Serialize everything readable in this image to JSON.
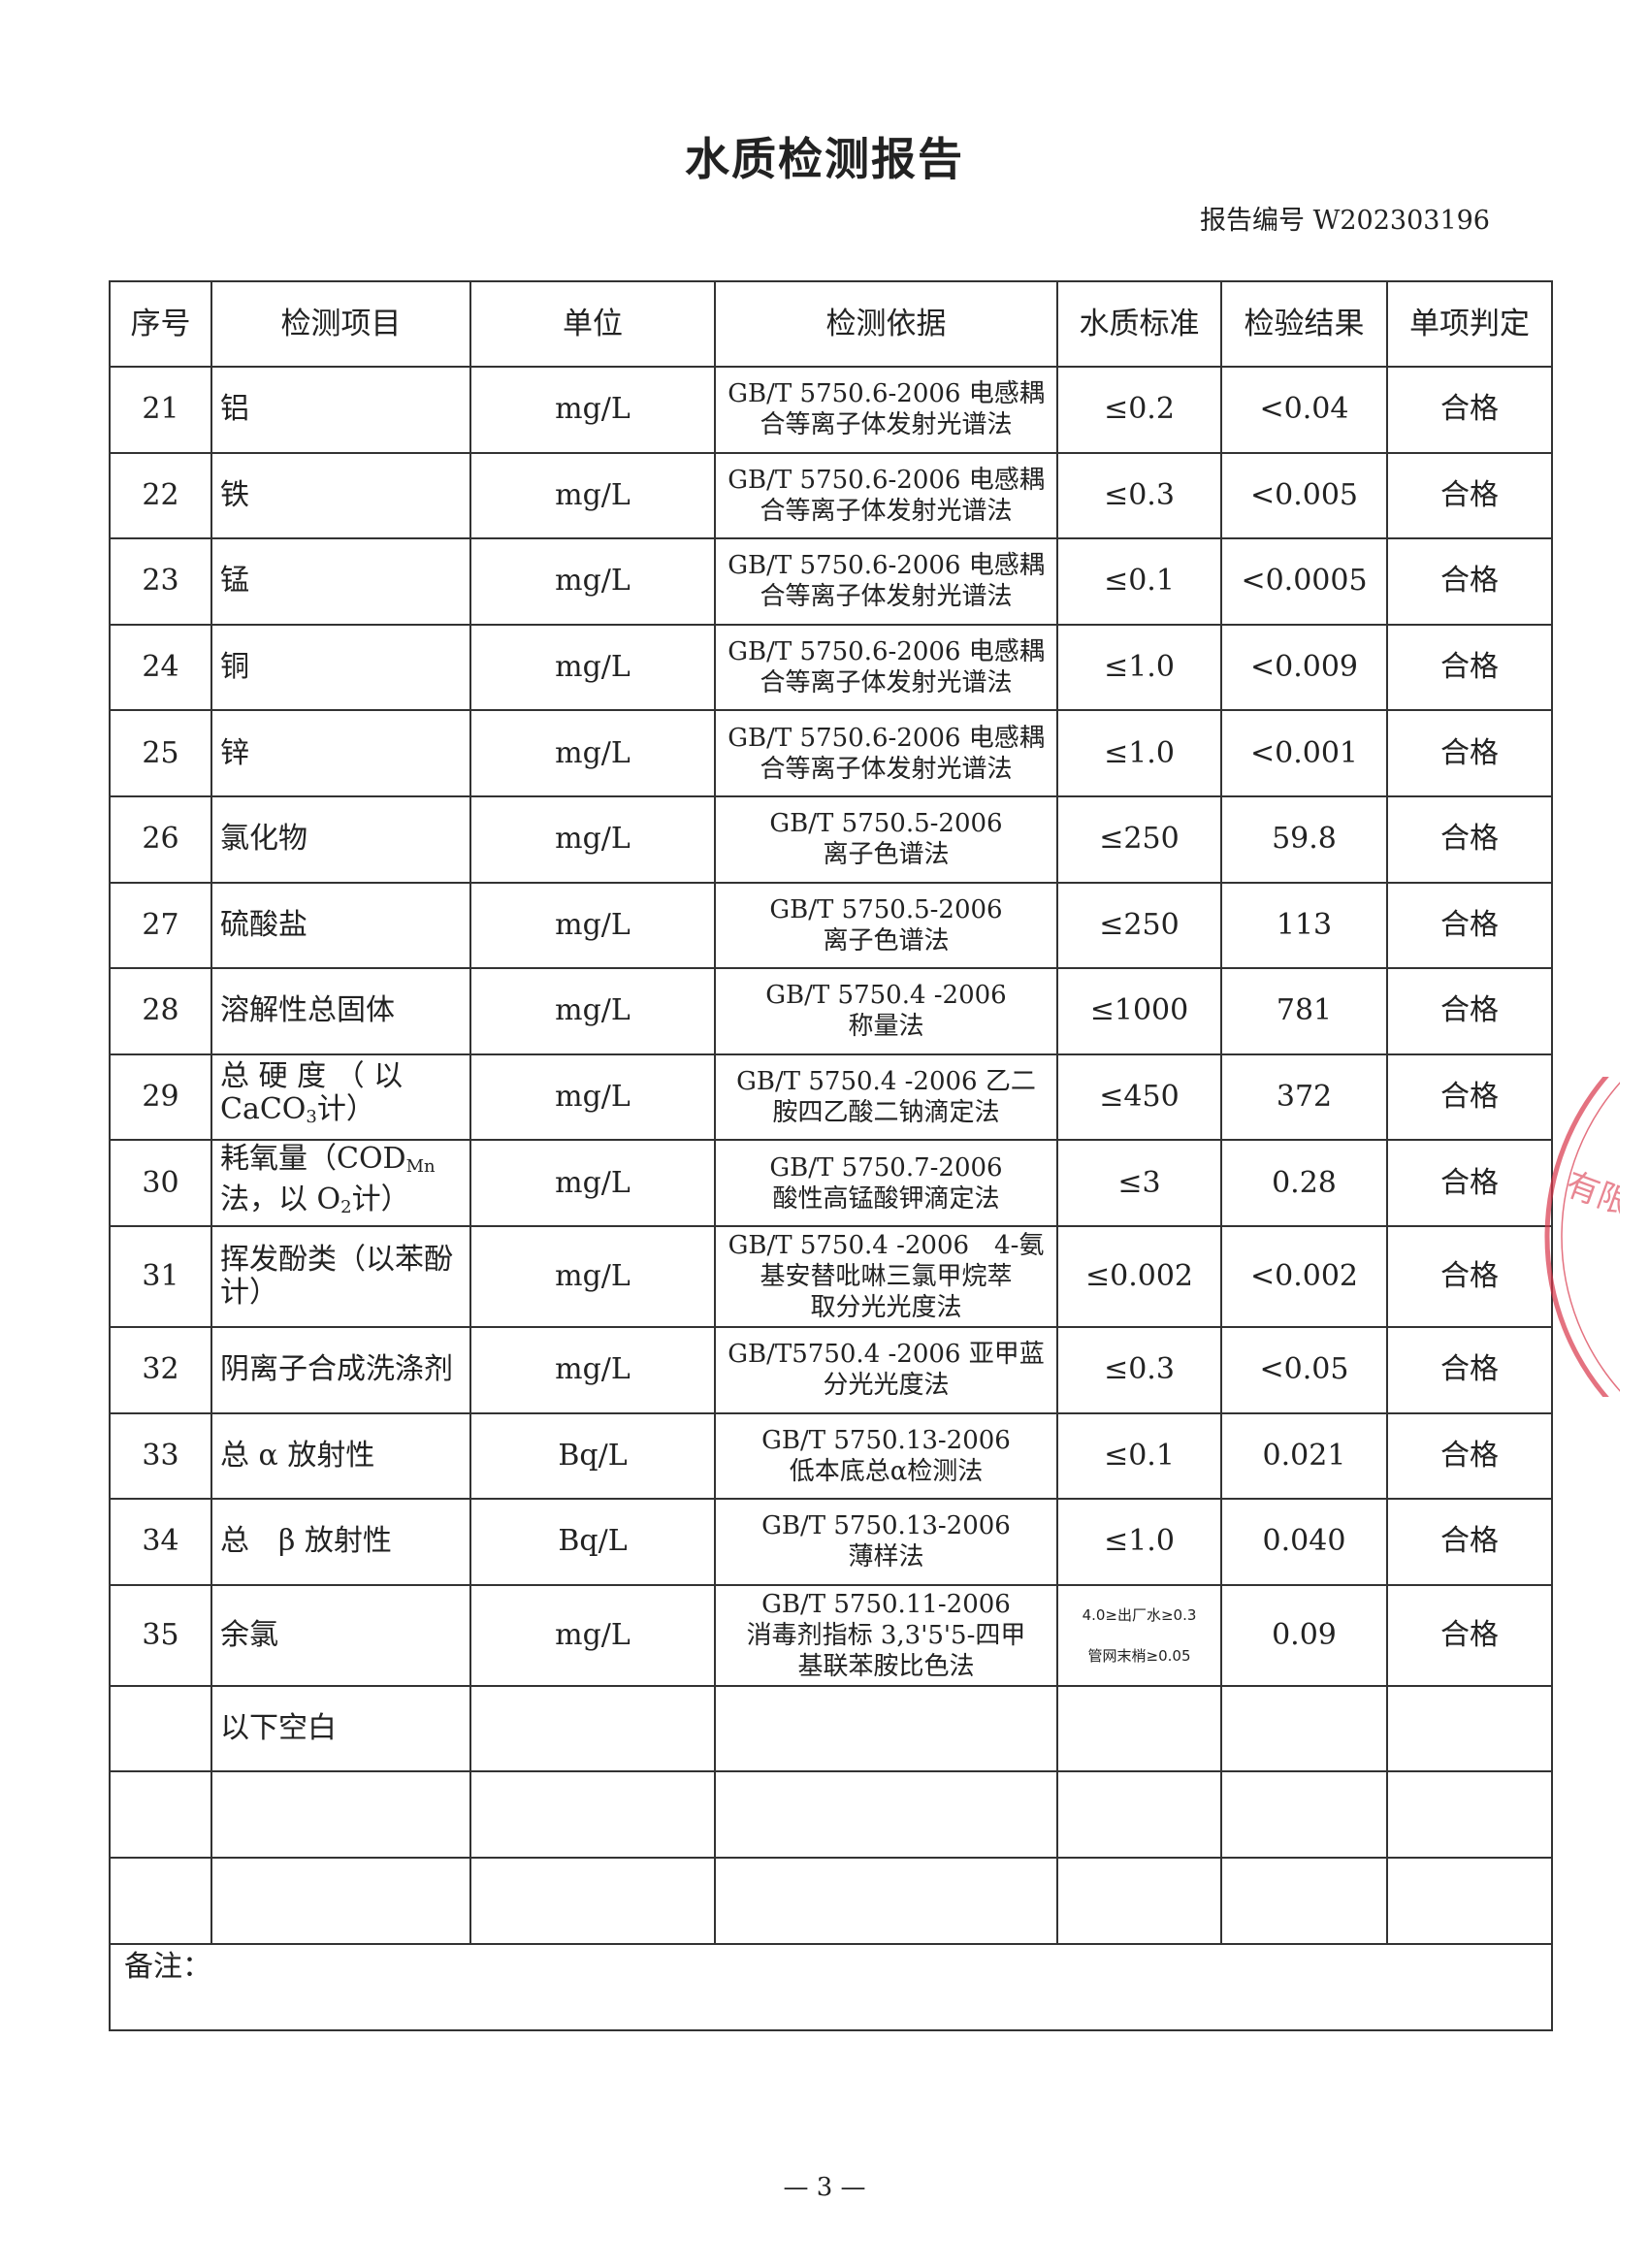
{
  "title": "水质检测报告",
  "report_number": "报告编号 W202303196",
  "headers": [
    "序号",
    "检测项目",
    "单位",
    "检测依据",
    "水质标准",
    "检验结果",
    "单项判定"
  ],
  "rows": [
    {
      "no": "21",
      "item": [
        {
          "t": "铝"
        }
      ],
      "unit": "mg/L",
      "method": [
        "GB/T 5750.6-2006 电感耦",
        "合等离子体发射光谱法"
      ],
      "standard": [
        "≤0.2"
      ],
      "result": "<0.04",
      "verdict": "合格"
    },
    {
      "no": "22",
      "item": [
        {
          "t": "铁"
        }
      ],
      "unit": "mg/L",
      "method": [
        "GB/T 5750.6-2006 电感耦",
        "合等离子体发射光谱法"
      ],
      "standard": [
        "≤0.3"
      ],
      "result": "<0.005",
      "verdict": "合格"
    },
    {
      "no": "23",
      "item": [
        {
          "t": "锰"
        }
      ],
      "unit": "mg/L",
      "method": [
        "GB/T 5750.6-2006 电感耦",
        "合等离子体发射光谱法"
      ],
      "standard": [
        "≤0.1"
      ],
      "result": "<0.0005",
      "verdict": "合格"
    },
    {
      "no": "24",
      "item": [
        {
          "t": "铜"
        }
      ],
      "unit": "mg/L",
      "method": [
        "GB/T 5750.6-2006 电感耦",
        "合等离子体发射光谱法"
      ],
      "standard": [
        "≤1.0"
      ],
      "result": "<0.009",
      "verdict": "合格"
    },
    {
      "no": "25",
      "item": [
        {
          "t": "锌"
        }
      ],
      "unit": "mg/L",
      "method": [
        "GB/T 5750.6-2006 电感耦",
        "合等离子体发射光谱法"
      ],
      "standard": [
        "≤1.0"
      ],
      "result": "<0.001",
      "verdict": "合格"
    },
    {
      "no": "26",
      "item": [
        {
          "t": "氯化物"
        }
      ],
      "unit": "mg/L",
      "method": [
        "GB/T 5750.5-2006",
        "离子色谱法"
      ],
      "standard": [
        "≤250"
      ],
      "result": "59.8",
      "verdict": "合格"
    },
    {
      "no": "27",
      "item": [
        {
          "t": "硫酸盐"
        }
      ],
      "unit": "mg/L",
      "method": [
        "GB/T 5750.5-2006",
        "离子色谱法"
      ],
      "standard": [
        "≤250"
      ],
      "result": "113",
      "verdict": "合格"
    },
    {
      "no": "28",
      "item": [
        {
          "t": "溶解性总固体"
        }
      ],
      "unit": "mg/L",
      "method": [
        "GB/T 5750.4 -2006",
        "称量法"
      ],
      "standard": [
        "≤1000"
      ],
      "result": "781",
      "verdict": "合格"
    },
    {
      "no": "29",
      "item": [
        {
          "t": "总 硬 度 （ 以 CaCO"
        },
        {
          "t": "3",
          "sub": true
        },
        {
          "t": "计）"
        }
      ],
      "unit": "mg/L",
      "method": [
        "GB/T 5750.4 -2006 乙二",
        "胺四乙酸二钠滴定法"
      ],
      "standard": [
        "≤450"
      ],
      "result": "372",
      "verdict": "合格"
    },
    {
      "no": "30",
      "item": [
        {
          "t": "耗氧量（COD"
        },
        {
          "t": "Mn",
          "sub": true
        },
        {
          "t": "法，以 O"
        },
        {
          "t": "2",
          "sub": true
        },
        {
          "t": "计）"
        }
      ],
      "unit": "mg/L",
      "method": [
        "GB/T 5750.7-2006",
        "酸性高锰酸钾滴定法"
      ],
      "standard": [
        "≤3"
      ],
      "result": "0.28",
      "verdict": "合格"
    },
    {
      "no": "31",
      "item": [
        {
          "t": "挥发酚类（以苯酚计）"
        }
      ],
      "unit": "mg/L",
      "method": [
        "GB/T 5750.4 -2006　4-氨",
        "基安替吡啉三氯甲烷萃",
        "取分光光度法"
      ],
      "standard": [
        "≤0.002"
      ],
      "result": "<0.002",
      "verdict": "合格"
    },
    {
      "no": "32",
      "item": [
        {
          "t": "阴离子合成洗涤剂"
        }
      ],
      "unit": "mg/L",
      "method": [
        "GB/T5750.4 -2006 亚甲蓝",
        "分光光度法"
      ],
      "standard": [
        "≤0.3"
      ],
      "result": "<0.05",
      "verdict": "合格"
    },
    {
      "no": "33",
      "item": [
        {
          "t": "总 α 放射性"
        }
      ],
      "unit": "Bq/L",
      "method": [
        "GB/T 5750.13-2006",
        "低本底总α检测法"
      ],
      "standard": [
        "≤0.1"
      ],
      "result": "0.021",
      "verdict": "合格"
    },
    {
      "no": "34",
      "item": [
        {
          "t": "总　β 放射性"
        }
      ],
      "unit": "Bq/L",
      "method": [
        "GB/T 5750.13-2006",
        "薄样法"
      ],
      "standard": [
        "≤1.0"
      ],
      "result": "0.040",
      "verdict": "合格"
    },
    {
      "no": "35",
      "item": [
        {
          "t": "余氯"
        }
      ],
      "unit": "mg/L",
      "method": [
        "GB/T 5750.11-2006",
        "消毒剂指标 3,3'5'5-四甲",
        "基联苯胺比色法"
      ],
      "standard": [
        "4.0≥出厂水≥0.3",
        "管网末梢≥0.05"
      ],
      "result": "0.09",
      "verdict": "合格"
    },
    {
      "no": "",
      "item": [
        {
          "t": "以下空白"
        }
      ],
      "unit": "",
      "method": [],
      "standard": [],
      "result": "",
      "verdict": ""
    },
    {
      "no": "",
      "item": [],
      "unit": "",
      "method": [],
      "standard": [],
      "result": "",
      "verdict": ""
    },
    {
      "no": "",
      "item": [],
      "unit": "",
      "method": [],
      "standard": [],
      "result": "",
      "verdict": ""
    }
  ],
  "remarks_label": "备注：",
  "page_number": "— 3 —",
  "stamp_color": "#d9364a"
}
